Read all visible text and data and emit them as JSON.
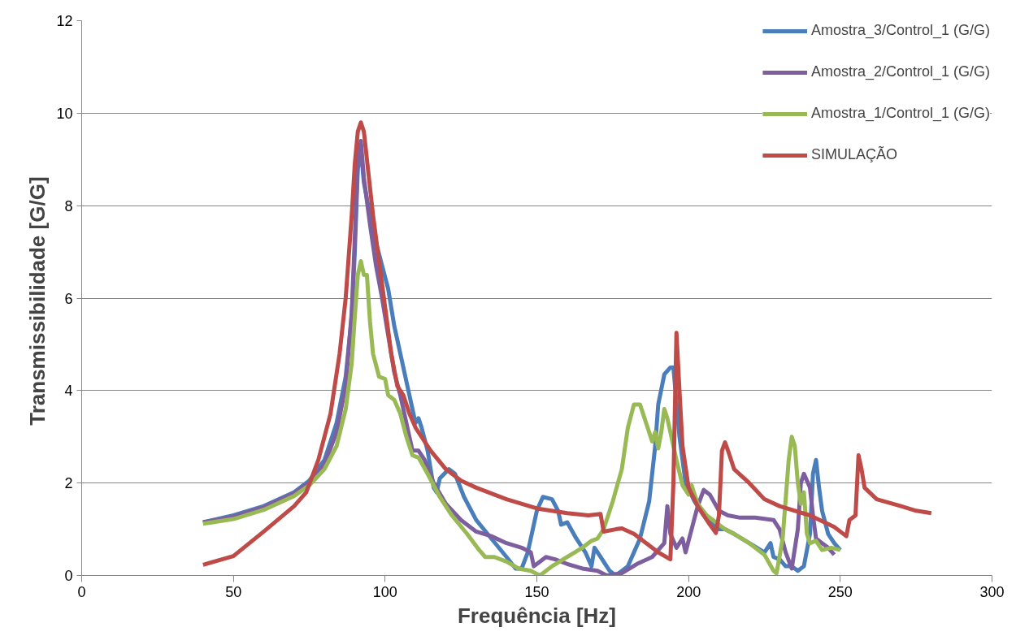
{
  "chart_data": {
    "type": "line",
    "xlabel": "Frequência [Hz]",
    "ylabel": "Transmissibilidade  [G/G]",
    "xlim": [
      0,
      300
    ],
    "ylim": [
      0,
      12
    ],
    "xticks": [
      0,
      50,
      100,
      150,
      200,
      250,
      300
    ],
    "yticks": [
      0,
      2,
      4,
      6,
      8,
      10,
      12
    ],
    "grid": "y",
    "legend": "top right",
    "marker": "none",
    "line_style": "solid",
    "series": [
      {
        "name": "Amostra_3/Control_1 (G/G)",
        "color": "#4a7ebb",
        "x": [
          40,
          50,
          60,
          70,
          75,
          80,
          84,
          87,
          89,
          90,
          91,
          92,
          93,
          95,
          97,
          99,
          101,
          103,
          105,
          107,
          109,
          110,
          111,
          112,
          114,
          116,
          117,
          118,
          121,
          123,
          126,
          130,
          135,
          140,
          143,
          145,
          147,
          150,
          152,
          155,
          157,
          158,
          160,
          163,
          166,
          168,
          169,
          171,
          174,
          176,
          180,
          184,
          187,
          189,
          190,
          192,
          194,
          195,
          197,
          199,
          202,
          205,
          208,
          210,
          212,
          215,
          220,
          225,
          227,
          228,
          230,
          232,
          234,
          236,
          238,
          240,
          241,
          242,
          243,
          244,
          246,
          248,
          250
        ],
        "values": [
          1.15,
          1.3,
          1.5,
          1.8,
          2.05,
          2.5,
          3.3,
          4.3,
          5.6,
          7.0,
          8.8,
          9.2,
          8.5,
          7.8,
          7.2,
          6.7,
          6.2,
          5.4,
          4.8,
          4.2,
          3.6,
          3.3,
          3.4,
          3.2,
          2.7,
          1.9,
          1.8,
          2.1,
          2.3,
          2.2,
          1.7,
          1.2,
          0.8,
          0.4,
          0.15,
          0.15,
          0.5,
          1.4,
          1.7,
          1.65,
          1.4,
          1.1,
          1.15,
          0.8,
          0.5,
          0.2,
          0.6,
          0.4,
          0.1,
          0.0,
          0.2,
          0.8,
          1.6,
          2.8,
          3.7,
          4.35,
          4.5,
          4.5,
          3.0,
          2.0,
          1.6,
          1.3,
          1.1,
          1.0,
          1.0,
          0.9,
          0.7,
          0.5,
          0.7,
          0.4,
          0.35,
          0.2,
          0.2,
          0.1,
          0.2,
          0.9,
          2.2,
          2.5,
          1.9,
          1.4,
          0.9,
          0.7,
          0.55
        ]
      },
      {
        "name": "Amostra_2/Control_1 (G/G)",
        "color": "#7d5fa0",
        "x": [
          40,
          50,
          60,
          70,
          75,
          80,
          84,
          87,
          89,
          90,
          91,
          92,
          93,
          95,
          97,
          99,
          101,
          103,
          105,
          107,
          109,
          111,
          113,
          116,
          120,
          125,
          130,
          135,
          140,
          145,
          148,
          149,
          151,
          153,
          156,
          160,
          165,
          170,
          173,
          178,
          183,
          188,
          192,
          193,
          194,
          196,
          198,
          199,
          201,
          203,
          205,
          207,
          210,
          213,
          217,
          222,
          228,
          230,
          232,
          234,
          236,
          237,
          238,
          240,
          241,
          242,
          244,
          246,
          248
        ],
        "values": [
          1.15,
          1.27,
          1.48,
          1.78,
          2.0,
          2.4,
          3.1,
          4.1,
          5.7,
          7.3,
          9.0,
          9.4,
          8.6,
          7.6,
          6.7,
          6.0,
          5.2,
          4.4,
          3.9,
          3.3,
          2.7,
          2.7,
          2.5,
          2.0,
          1.55,
          1.2,
          0.95,
          0.85,
          0.7,
          0.6,
          0.5,
          0.2,
          0.3,
          0.4,
          0.35,
          0.25,
          0.15,
          0.1,
          0.0,
          0.05,
          0.25,
          0.4,
          0.7,
          1.5,
          0.9,
          0.6,
          0.8,
          0.5,
          1.0,
          1.5,
          1.85,
          1.75,
          1.4,
          1.3,
          1.25,
          1.25,
          1.2,
          1.0,
          0.5,
          0.15,
          1.0,
          2.0,
          2.2,
          1.9,
          1.3,
          0.8,
          0.7,
          0.6,
          0.45
        ]
      },
      {
        "name": "Amostra_1/Control_1 (G/G)",
        "color": "#98b954",
        "x": [
          40,
          50,
          60,
          70,
          75,
          80,
          84,
          87,
          89,
          90,
          91,
          92,
          93,
          94,
          95,
          96,
          98,
          100,
          101,
          103,
          105,
          107,
          109,
          111,
          114,
          118,
          122,
          127,
          131,
          133,
          136,
          140,
          144,
          148,
          151,
          155,
          160,
          165,
          168,
          170,
          172,
          175,
          178,
          180,
          182,
          184,
          186,
          188,
          189,
          190,
          191,
          192,
          193,
          194,
          196,
          198,
          200,
          201,
          203,
          206,
          210,
          212,
          215,
          220,
          225,
          228,
          229,
          231,
          233,
          234,
          235,
          236,
          237,
          238,
          239,
          240,
          242,
          244,
          247,
          250
        ],
        "values": [
          1.12,
          1.22,
          1.42,
          1.72,
          1.95,
          2.3,
          2.8,
          3.6,
          4.6,
          5.6,
          6.5,
          6.8,
          6.5,
          6.5,
          5.5,
          4.8,
          4.3,
          4.25,
          3.9,
          3.8,
          3.5,
          3.0,
          2.6,
          2.55,
          2.2,
          1.7,
          1.3,
          0.9,
          0.55,
          0.4,
          0.4,
          0.3,
          0.15,
          0.1,
          0.0,
          0.2,
          0.4,
          0.6,
          0.75,
          0.8,
          1.0,
          1.6,
          2.3,
          3.2,
          3.7,
          3.7,
          3.3,
          2.9,
          3.1,
          2.75,
          3.1,
          3.6,
          3.4,
          3.1,
          2.5,
          1.95,
          1.75,
          1.95,
          1.55,
          1.3,
          1.1,
          1.0,
          0.9,
          0.7,
          0.45,
          0.1,
          0.05,
          0.8,
          2.5,
          3.0,
          2.8,
          2.0,
          1.55,
          1.8,
          0.9,
          0.7,
          0.75,
          0.55,
          0.6,
          0.55
        ]
      },
      {
        "name": "SIMULAÇÃO",
        "color": "#be4b48",
        "x": [
          40,
          50,
          60,
          70,
          74,
          78,
          82,
          85,
          87,
          89,
          90,
          91,
          92,
          93,
          94,
          96,
          98,
          100,
          102,
          104,
          106,
          108,
          110,
          115,
          120,
          125,
          130,
          140,
          150,
          160,
          167,
          171,
          172,
          176,
          178,
          182,
          190,
          194,
          195,
          196,
          197,
          198,
          200,
          203,
          207,
          209,
          210,
          211,
          212,
          213,
          215,
          220,
          225,
          230,
          240,
          248,
          252,
          253,
          255,
          256,
          257,
          258,
          262,
          270,
          275,
          280
        ],
        "values": [
          0.23,
          0.42,
          0.95,
          1.5,
          1.8,
          2.5,
          3.5,
          4.8,
          6.0,
          7.8,
          8.9,
          9.6,
          9.8,
          9.6,
          9.0,
          7.8,
          6.8,
          5.8,
          4.8,
          4.1,
          3.9,
          3.5,
          3.2,
          2.7,
          2.3,
          2.05,
          1.9,
          1.65,
          1.45,
          1.35,
          1.3,
          1.33,
          0.95,
          1.0,
          1.02,
          0.9,
          0.5,
          0.35,
          2.0,
          5.25,
          4.0,
          2.8,
          1.9,
          1.5,
          1.1,
          0.92,
          1.3,
          2.7,
          2.88,
          2.7,
          2.3,
          2.0,
          1.65,
          1.5,
          1.3,
          1.05,
          0.85,
          1.2,
          1.3,
          2.6,
          2.3,
          1.9,
          1.65,
          1.5,
          1.4,
          1.35
        ]
      }
    ]
  }
}
